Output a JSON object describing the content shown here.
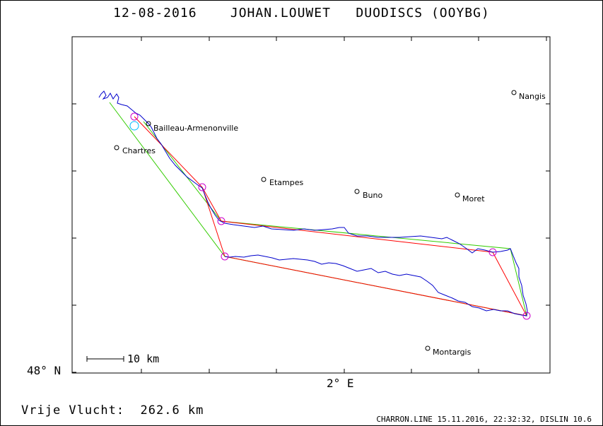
{
  "title": "12-08-2016    JOHAN.LOUWET   DUODISCS (OOYBG)",
  "axes": {
    "latitude_label": "48° N",
    "longitude_label": "2° E"
  },
  "scale_bar": {
    "label": "10 km"
  },
  "distance": {
    "text": "Vrije Vlucht:  262.6 km"
  },
  "footer": {
    "text": "CHARRON.LINE 15.11.2016, 22:32:32, DISLIN 10.6"
  },
  "cities": [
    {
      "name": "Nangis"
    },
    {
      "name": "Bailleau-Armenonville"
    },
    {
      "name": "Chartres"
    },
    {
      "name": "Etampes"
    },
    {
      "name": "Buno"
    },
    {
      "name": "Moret"
    },
    {
      "name": "Montargis"
    }
  ],
  "colors": {
    "track": "#0000cc",
    "task_line": "#ff0000",
    "optimized_line": "#33cc00",
    "turnpoint": "#cc00cc",
    "start_marker": "#00bbff"
  }
}
